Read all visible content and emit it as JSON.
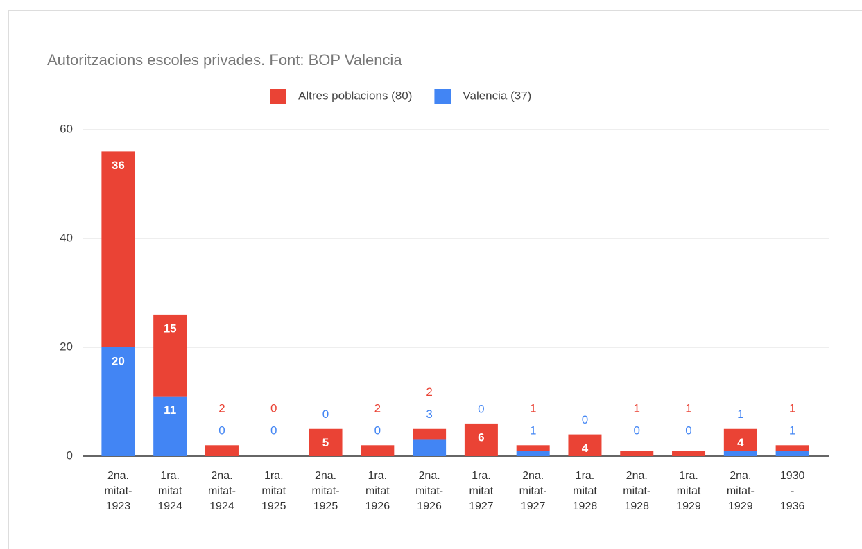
{
  "chart_data": {
    "type": "stacked_bar",
    "title": "Autoritzacions escoles privades. Font: BOP Valencia",
    "categories": [
      "2na.\nmitat-\n1923",
      "1ra.\nmitat\n1924",
      "2na.\nmitat-\n1924",
      "1ra.\nmitat\n1925",
      "2na.\nmitat-\n1925",
      "1ra.\nmitat\n1926",
      "2na.\nmitat-\n1926",
      "1ra.\nmitat\n1927",
      "2na.\nmitat-\n1927",
      "1ra.\nmitat\n1928",
      "2na.\nmitat-\n1928",
      "1ra.\nmitat\n1929",
      "2na.\nmitat-\n1929",
      "1930\n-\n1936"
    ],
    "series": [
      {
        "name": "Altres poblacions (80)",
        "color": "#ea4335",
        "values": [
          36,
          15,
          2,
          0,
          5,
          2,
          2,
          6,
          1,
          4,
          1,
          1,
          4,
          1
        ]
      },
      {
        "name": "Valencia (37)",
        "color": "#4285f4",
        "values": [
          20,
          11,
          0,
          0,
          0,
          0,
          3,
          0,
          1,
          0,
          0,
          0,
          1,
          1
        ]
      }
    ],
    "ylim": [
      0,
      60
    ],
    "yticks": [
      0,
      20,
      40,
      60
    ],
    "grid": true,
    "legend": "top"
  }
}
